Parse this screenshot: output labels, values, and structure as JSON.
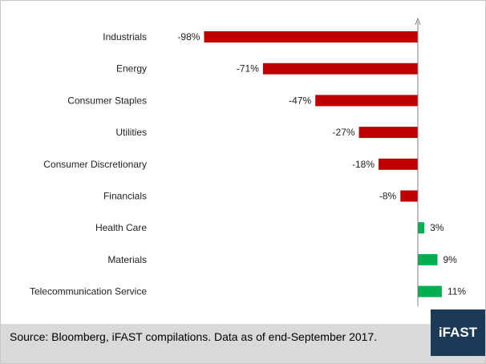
{
  "chart_data": {
    "type": "bar",
    "orientation": "horizontal",
    "categories": [
      "Industrials",
      "Energy",
      "Consumer Staples",
      "Utilities",
      "Consumer Discretionary",
      "Financials",
      "Health Care",
      "Materials",
      "Telecommunication Service"
    ],
    "values": [
      -98,
      -71,
      -47,
      -27,
      -18,
      -8,
      3,
      9,
      11
    ],
    "value_labels": [
      "-98%",
      "-71%",
      "-47%",
      "-27%",
      "-18%",
      "-8%",
      "3%",
      "9%",
      "11%"
    ],
    "title": "",
    "xlabel": "",
    "ylabel": "",
    "xlim": [
      -98,
      11
    ],
    "grid": false,
    "legend": "none",
    "colors": {
      "negative": "#c00000",
      "positive": "#00b050",
      "axis": "#7f7f7f"
    }
  },
  "footer": {
    "source_text": "Source: Bloomberg, iFAST compilations. Data as of end-September 2017.",
    "logo_text": "iFAST",
    "logo_color": "#1b3a57",
    "background": "#d9d9d9"
  }
}
